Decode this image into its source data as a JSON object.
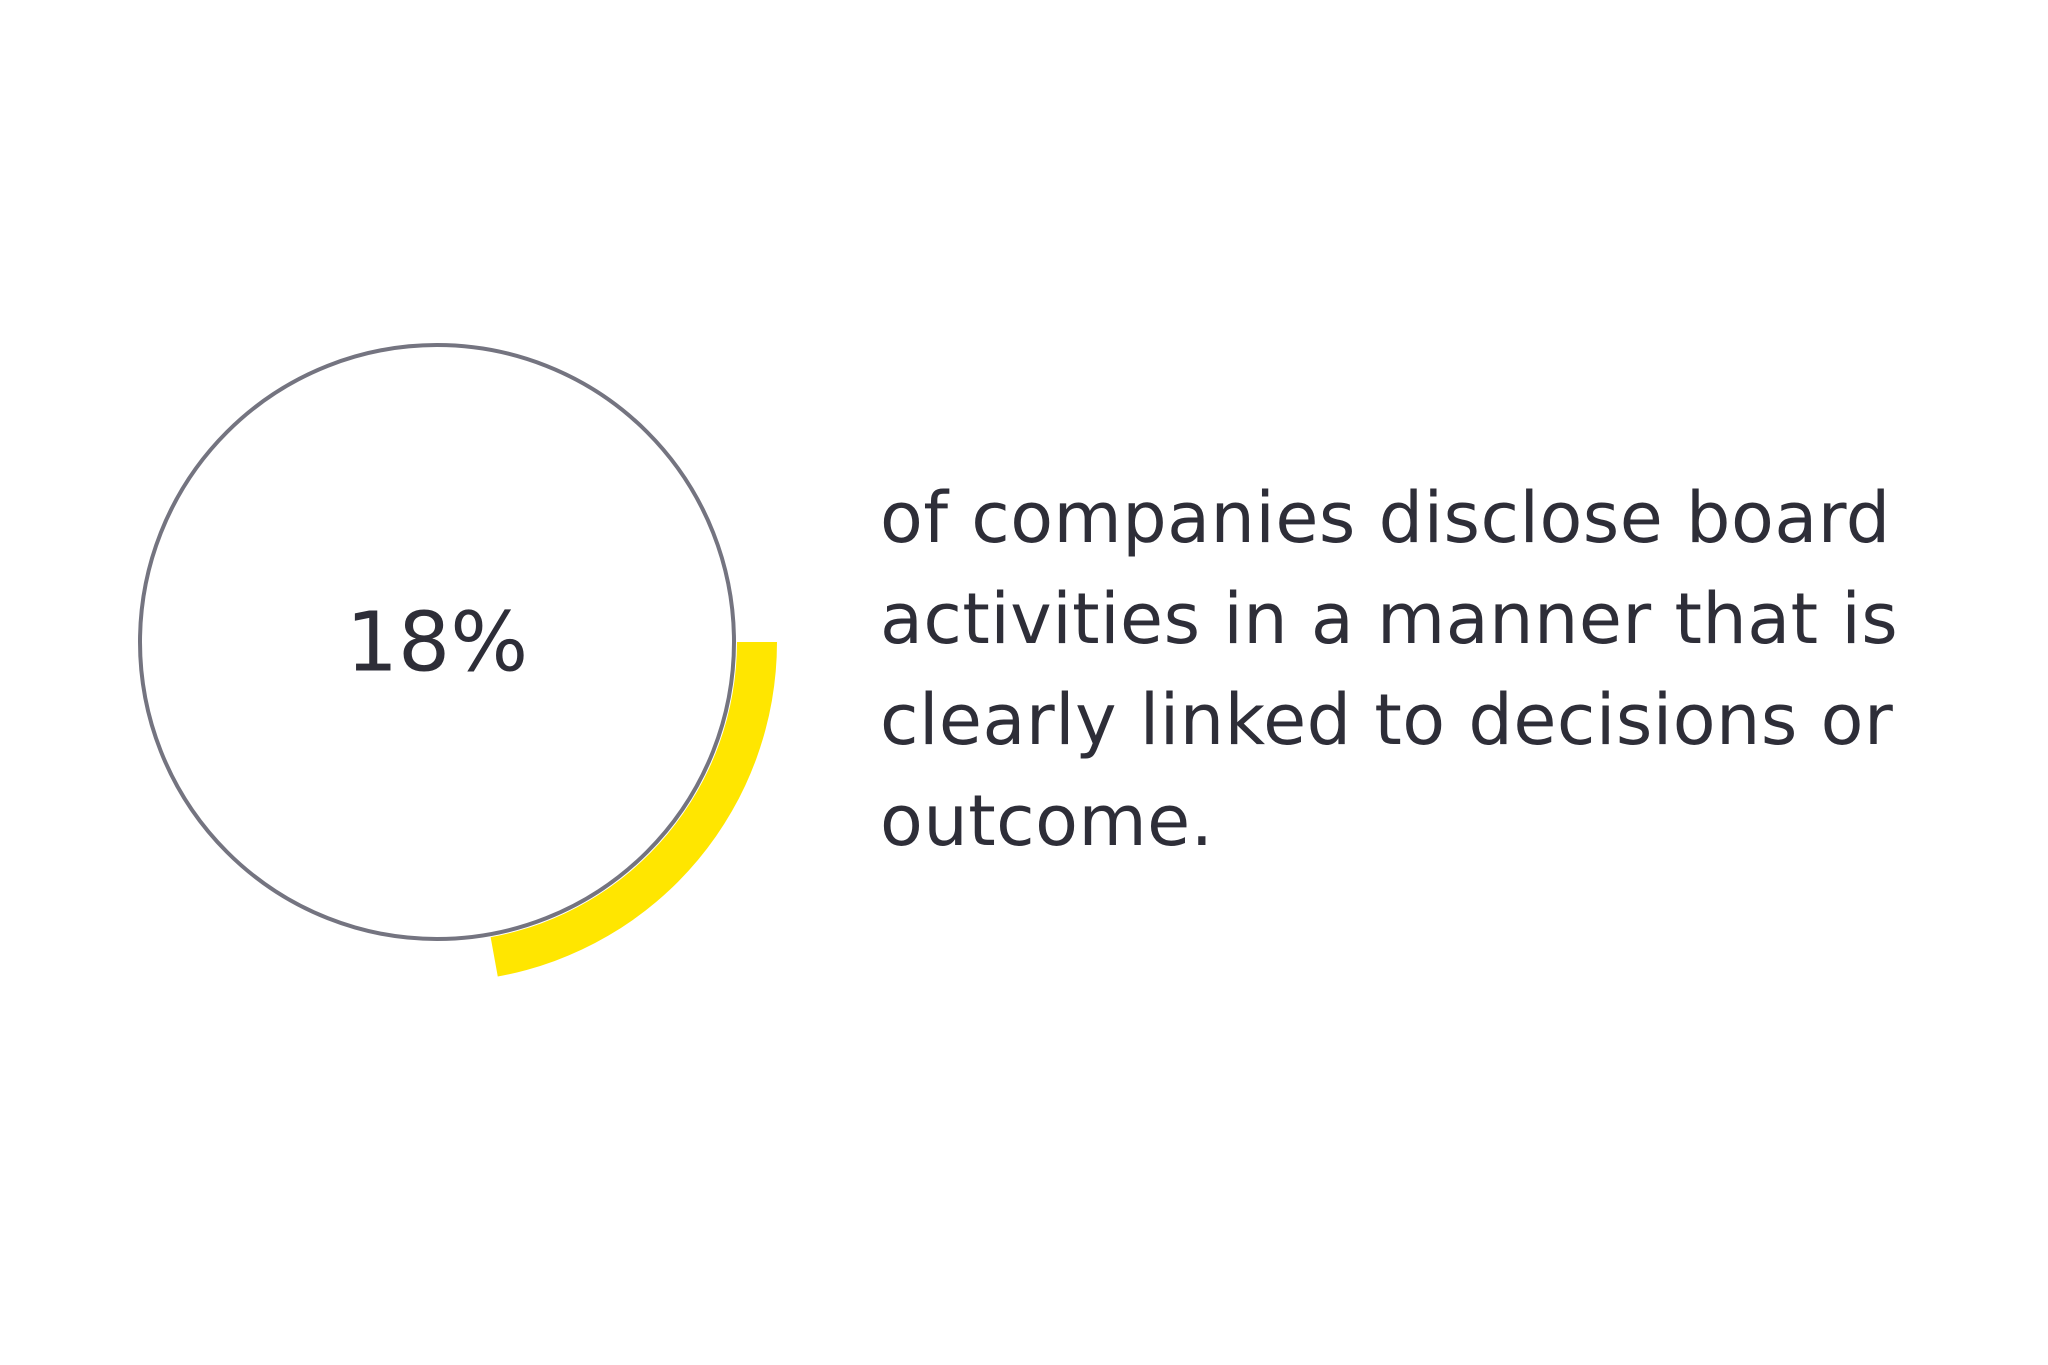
{
  "chart_data": {
    "type": "pie",
    "categories": [
      "18%"
    ],
    "values": [
      18
    ],
    "value_label": "18%",
    "max": 100,
    "style": "donut-progress"
  },
  "caption": {
    "lines": [
      "of companies disclose board",
      "activities in a manner that is",
      "clearly linked to decisions or",
      "outcome."
    ]
  },
  "colors": {
    "accent": "#FFE600",
    "ring": "#747480",
    "text": "#2E2E38",
    "background": "#FFFFFF"
  }
}
